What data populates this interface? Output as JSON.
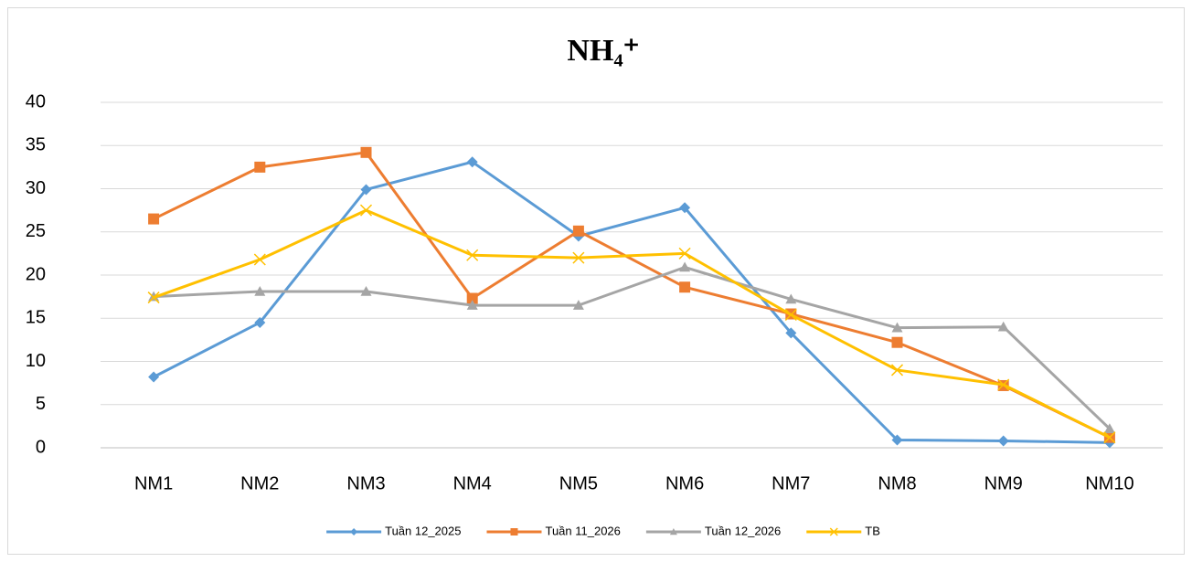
{
  "chart_data": {
    "type": "line",
    "title": "NH₄⁺",
    "categories": [
      "NM1",
      "NM2",
      "NM3",
      "NM4",
      "NM5",
      "NM6",
      "NM7",
      "NM8",
      "NM9",
      "NM10"
    ],
    "series": [
      {
        "name": "Tuần 12_2025",
        "color": "#5b9bd5",
        "marker": "diamond",
        "values": [
          8.2,
          14.5,
          29.9,
          33.1,
          24.5,
          27.8,
          13.3,
          0.9,
          0.8,
          0.6
        ]
      },
      {
        "name": "Tuần 11_2026",
        "color": "#ed7d31",
        "marker": "square",
        "values": [
          26.5,
          32.5,
          34.2,
          17.3,
          25.1,
          18.6,
          15.5,
          12.2,
          7.2,
          1.2
        ]
      },
      {
        "name": "Tuần 12_2026",
        "color": "#a5a5a5",
        "marker": "triangle",
        "values": [
          17.5,
          18.1,
          18.1,
          16.5,
          16.5,
          20.9,
          17.2,
          13.9,
          14.0,
          2.2
        ]
      },
      {
        "name": "TB",
        "color": "#ffc000",
        "marker": "x",
        "values": [
          17.4,
          21.8,
          27.5,
          22.3,
          22.0,
          22.5,
          15.4,
          9.0,
          7.3,
          1.2
        ]
      }
    ],
    "ylim": [
      0,
      40
    ],
    "yticks": [
      0,
      5,
      10,
      15,
      20,
      25,
      30,
      35,
      40
    ],
    "grid": true,
    "legend": "bottom"
  }
}
